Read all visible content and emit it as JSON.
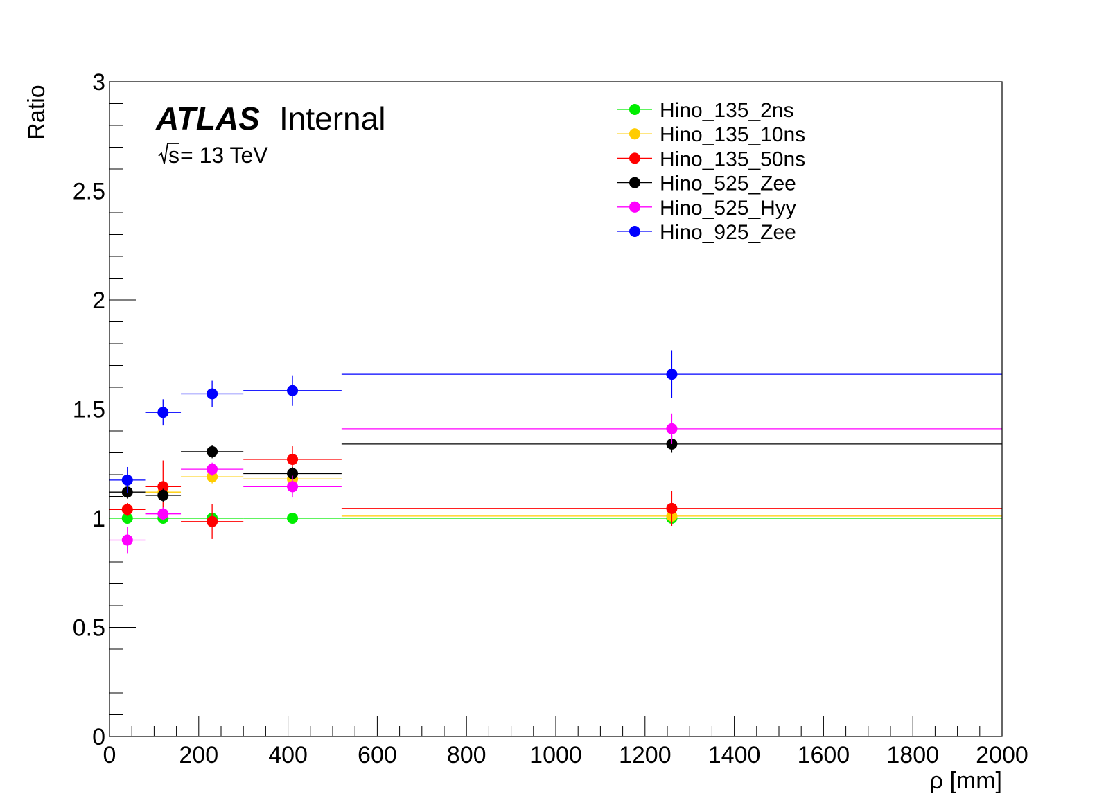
{
  "chart_data": {
    "type": "scatter",
    "xlabel": "ρ [mm]",
    "ylabel": "Ratio",
    "xlim": [
      0,
      2000
    ],
    "ylim": [
      0,
      3
    ],
    "x_ticks": [
      "0",
      "200",
      "400",
      "600",
      "800",
      "1000",
      "1200",
      "1400",
      "1600",
      "1800",
      "2000"
    ],
    "y_ticks": [
      "0",
      "0.5",
      "1",
      "1.5",
      "2",
      "2.5",
      "3"
    ],
    "grid": false,
    "legend_position": "top-right",
    "bins": [
      [
        0,
        80
      ],
      [
        80,
        160
      ],
      [
        160,
        300
      ],
      [
        300,
        520
      ],
      [
        520,
        2000
      ]
    ],
    "x": [
      40,
      120,
      230,
      410,
      1260
    ],
    "annotations": {
      "experiment": "ATLAS",
      "status": "Internal",
      "energy_sqrt": "s",
      "energy_rest": " = 13 TeV"
    },
    "series": [
      {
        "name": "Hino_135_2ns",
        "color": "#00ee00",
        "values": [
          1.0,
          1.0,
          1.0,
          1.0,
          1.0
        ],
        "errors": [
          0.005,
          0.005,
          0.005,
          0.005,
          0.005
        ]
      },
      {
        "name": "Hino_135_10ns",
        "color": "#ffcc00",
        "values": [
          1.04,
          1.12,
          1.19,
          1.18,
          1.01
        ],
        "errors": [
          0.02,
          0.03,
          0.03,
          0.03,
          0.03
        ]
      },
      {
        "name": "Hino_135_50ns",
        "color": "#ff0000",
        "values": [
          1.04,
          1.145,
          0.985,
          1.27,
          1.045
        ],
        "errors": [
          0.03,
          0.12,
          0.08,
          0.06,
          0.08
        ]
      },
      {
        "name": "Hino_525_Zee",
        "color": "#000000",
        "values": [
          1.12,
          1.105,
          1.305,
          1.205,
          1.34
        ],
        "errors": [
          0.03,
          0.03,
          0.03,
          0.03,
          0.04
        ]
      },
      {
        "name": "Hino_525_Hyy",
        "color": "#ff00ff",
        "values": [
          0.9,
          1.02,
          1.225,
          1.145,
          1.41
        ],
        "errors": [
          0.06,
          0.03,
          0.03,
          0.05,
          0.07
        ]
      },
      {
        "name": "Hino_925_Zee",
        "color": "#0000ff",
        "values": [
          1.175,
          1.485,
          1.57,
          1.585,
          1.66
        ],
        "errors": [
          0.06,
          0.06,
          0.06,
          0.07,
          0.11
        ]
      }
    ]
  }
}
